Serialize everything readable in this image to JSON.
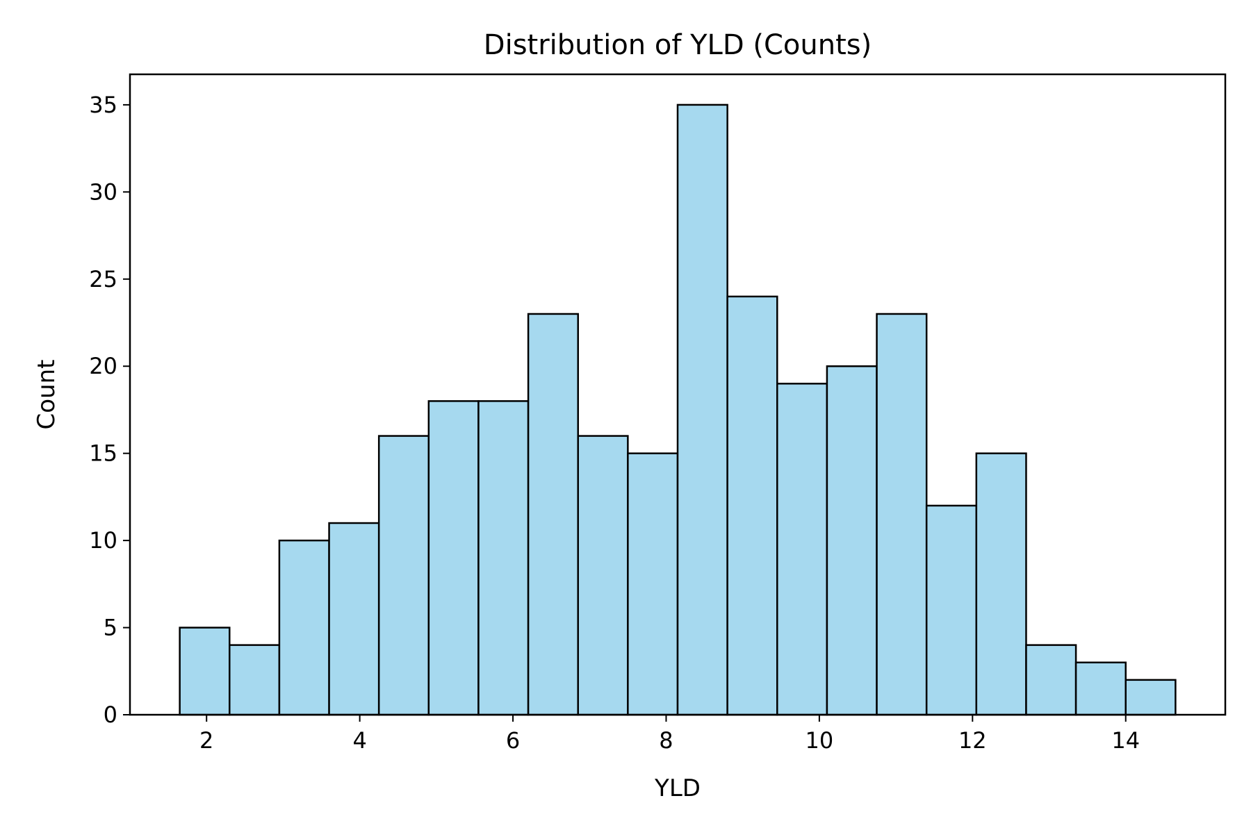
{
  "chart_data": {
    "type": "bar",
    "title": "Distribution of YLD (Counts)",
    "xlabel": "YLD",
    "ylabel": "Count",
    "bin_edges": [
      1.65,
      2.3,
      2.95,
      3.6,
      4.25,
      4.9,
      5.55,
      6.2,
      6.85,
      7.5,
      8.15,
      8.8,
      9.45,
      10.1,
      10.75,
      11.4,
      12.05,
      12.7,
      13.35,
      14.0,
      14.65
    ],
    "values": [
      5,
      4,
      10,
      11,
      16,
      18,
      18,
      23,
      16,
      15,
      35,
      24,
      19,
      20,
      23,
      12,
      15,
      4,
      3,
      2
    ],
    "xlim": [
      1.0,
      15.3
    ],
    "ylim": [
      0,
      36.75
    ],
    "xticks": [
      2,
      4,
      6,
      8,
      10,
      12,
      14
    ],
    "yticks": [
      0,
      5,
      10,
      15,
      20,
      25,
      30,
      35
    ],
    "bar_color": "#a6d9ef",
    "edge_color": "#000000",
    "grid": false
  }
}
